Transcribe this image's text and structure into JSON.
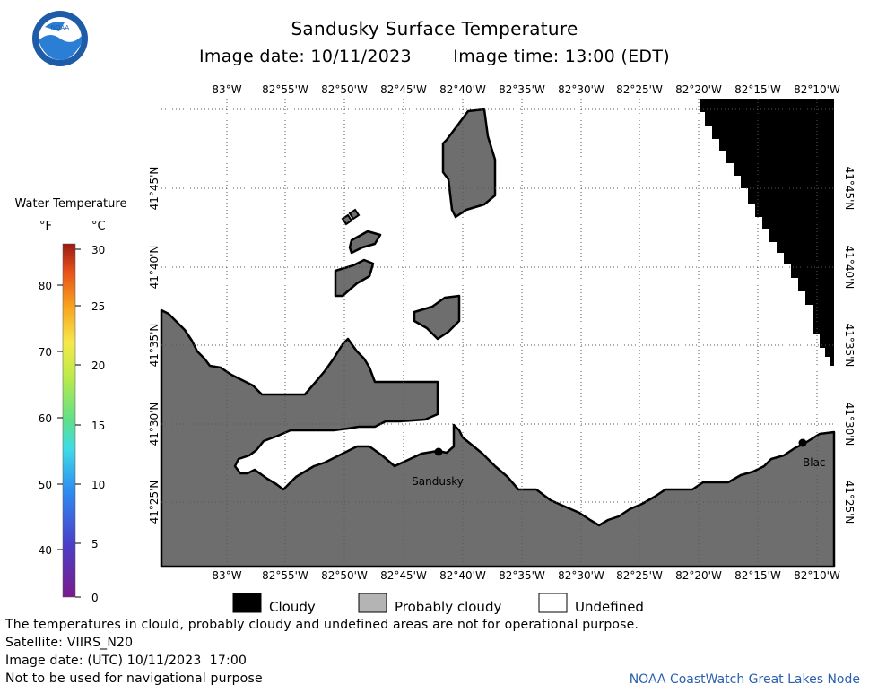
{
  "header": {
    "title": "Sandusky Surface Temperature",
    "image_date": "Image date: 10/11/2023",
    "image_time": "Image time: 13:00 (EDT)"
  },
  "colorbar": {
    "title": "Water Temperature",
    "unit_f": "°F",
    "unit_c": "°C",
    "f_ticks": [
      "40",
      "50",
      "60",
      "70",
      "80"
    ],
    "c_ticks": [
      "0",
      "5",
      "10",
      "15",
      "20",
      "25",
      "30"
    ]
  },
  "map": {
    "lon_labels": [
      "83°W",
      "82°55'W",
      "82°50'W",
      "82°45'W",
      "82°40'W",
      "82°35'W",
      "82°30'W",
      "82°25'W",
      "82°20'W",
      "82°15'W",
      "82°10'W"
    ],
    "lat_labels": [
      "41°45'N",
      "41°40'N",
      "41°35'N",
      "41°30'N",
      "41°25'N"
    ],
    "places": {
      "sandusky": "Sandusky",
      "blac": "Blac"
    },
    "colors": {
      "land": "#6e6e6e",
      "cloud": "#000000",
      "water": "#ffffff"
    }
  },
  "legend": {
    "cloudy": "Cloudy",
    "probably_cloudy": "Probably cloudy",
    "undefined": "Undefined"
  },
  "notes": {
    "disclaimer": "The temperatures in clould, probably cloudy and undefined areas are not for operational purpose.",
    "satellite": "Satellite: VIIRS_N20",
    "utc_date": "Image date: (UTC) 10/11/2023  17:00",
    "nav": "Not to be used for navigational purpose",
    "credit": "NOAA CoastWatch Great Lakes Node"
  },
  "logo": {
    "text": "NOAA"
  }
}
